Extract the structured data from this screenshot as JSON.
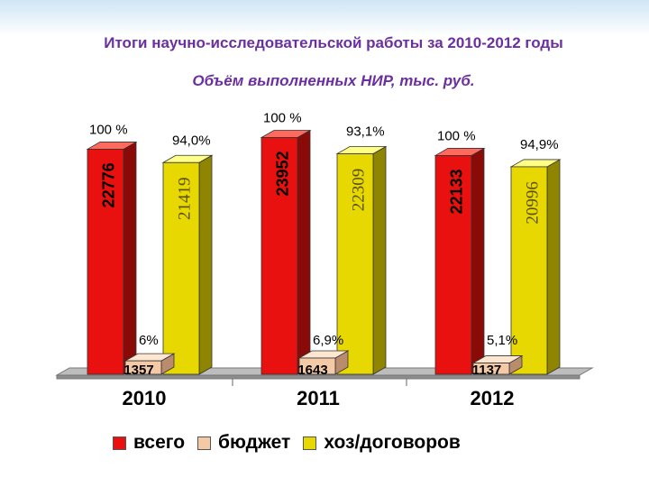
{
  "title": "Итоги научно-исследовательской работы за  2010-2012 годы",
  "subtitle": "Объём выполненных НИР, тыс. руб.",
  "colors": {
    "total": "#e8110f",
    "budget": "#f4c9a5",
    "contract": "#e6d800"
  },
  "chart_data": {
    "type": "bar",
    "title": "Объём выполненных НИР, тыс. руб.",
    "categories": [
      "2010",
      "2011",
      "2012"
    ],
    "series": [
      {
        "name": "всего",
        "values": [
          22776,
          23952,
          22133
        ],
        "value_labels": [
          "22776",
          "23952",
          "22133"
        ],
        "percent_labels": [
          "100 %",
          "100 %",
          "100 %"
        ]
      },
      {
        "name": "бюджет",
        "values": [
          1357,
          1643,
          1137
        ],
        "value_labels": [
          "1357",
          "1643",
          "1137"
        ],
        "percent_labels": [
          "6%",
          "6,9%",
          "5,1%"
        ]
      },
      {
        "name": "хоз/договоров",
        "values": [
          21419,
          22309,
          20996
        ],
        "value_labels": [
          "21419",
          "22309",
          "20996"
        ],
        "percent_labels": [
          "94,0%",
          "93,1%",
          "94,9%"
        ]
      }
    ],
    "ylim": [
      0,
      24000
    ],
    "grid": false,
    "legend": "bottom"
  }
}
